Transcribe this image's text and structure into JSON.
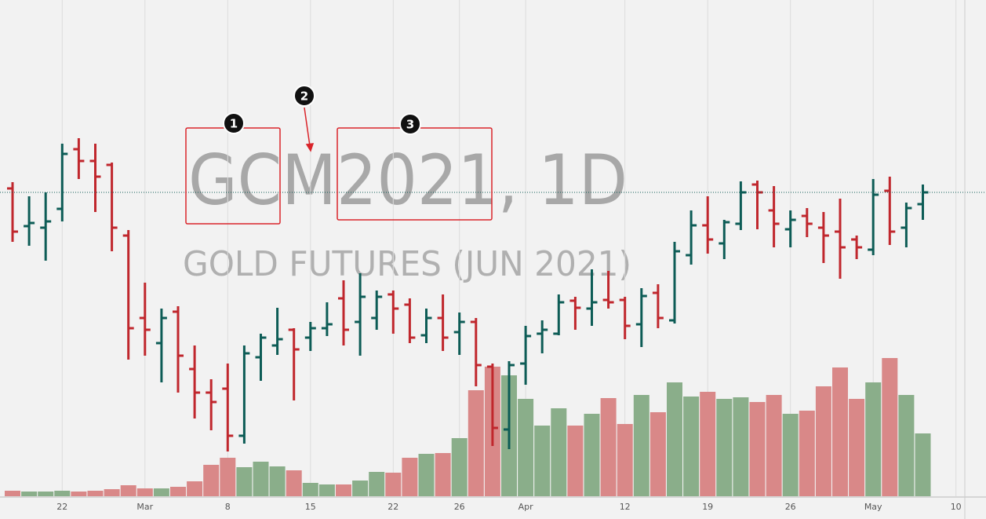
{
  "chart_data": {
    "type": "ohlc",
    "title": "GCM2021, 1D",
    "subtitle": "GOLD FUTURES (JUN 2021)",
    "categories": [
      null,
      null,
      null,
      "22",
      null,
      null,
      null,
      null,
      "Mar",
      null,
      null,
      null,
      null,
      "8",
      null,
      null,
      null,
      null,
      "15",
      null,
      null,
      null,
      null,
      "22",
      null,
      null,
      null,
      "26",
      null,
      null,
      null,
      "Apr",
      null,
      null,
      null,
      null,
      null,
      "12",
      null,
      null,
      null,
      null,
      "19",
      null,
      null,
      null,
      null,
      "26",
      null,
      null,
      null,
      null,
      "May",
      null,
      null,
      null,
      null,
      "10"
    ],
    "open": [
      421,
      373,
      371,
      395,
      471,
      456,
      451,
      361,
      256,
      224,
      264,
      191,
      161,
      166,
      106,
      206,
      221,
      241,
      231,
      243,
      281,
      251,
      256,
      286,
      273,
      234,
      256,
      238,
      251,
      194,
      114,
      198,
      236,
      236,
      278,
      268,
      279,
      279,
      248,
      288,
      253,
      336,
      374,
      351,
      376,
      426,
      393,
      369,
      386,
      371,
      366,
      356,
      343,
      418,
      371,
      401,
      null,
      null
    ],
    "high": [
      429,
      411,
      416,
      478,
      485,
      478,
      454,
      368,
      301,
      268,
      271,
      221,
      178,
      198,
      221,
      236,
      269,
      243,
      251,
      276,
      304,
      313,
      291,
      291,
      281,
      268,
      286,
      263,
      256,
      198,
      201,
      246,
      253,
      286,
      283,
      318,
      316,
      283,
      294,
      299,
      353,
      393,
      411,
      381,
      430,
      431,
      424,
      393,
      396,
      391,
      408,
      361,
      433,
      436,
      403,
      426,
      null,
      null
    ],
    "low": [
      353,
      348,
      329,
      379,
      433,
      391,
      341,
      203,
      208,
      174,
      161,
      128,
      113,
      86,
      96,
      176,
      209,
      151,
      214,
      233,
      221,
      208,
      241,
      236,
      224,
      224,
      214,
      209,
      169,
      93,
      89,
      171,
      211,
      234,
      241,
      246,
      268,
      229,
      219,
      243,
      249,
      324,
      338,
      331,
      368,
      369,
      346,
      346,
      359,
      326,
      306,
      331,
      336,
      349,
      346,
      381,
      null,
      null
    ],
    "close": [
      366,
      377,
      379,
      465,
      456,
      436,
      371,
      243,
      241,
      256,
      208,
      161,
      149,
      106,
      211,
      231,
      229,
      216,
      243,
      248,
      241,
      283,
      283,
      268,
      231,
      256,
      231,
      251,
      196,
      116,
      196,
      233,
      241,
      276,
      269,
      276,
      276,
      246,
      284,
      256,
      341,
      374,
      356,
      378,
      416,
      416,
      376,
      381,
      376,
      361,
      346,
      346,
      413,
      366,
      396,
      416,
      null,
      null
    ],
    "volume": [
      7,
      6,
      6,
      7,
      6,
      7,
      9,
      14,
      10,
      10,
      12,
      19,
      40,
      49,
      37,
      44,
      38,
      33,
      17,
      15,
      15,
      20,
      31,
      30,
      49,
      54,
      55,
      74,
      135,
      165,
      154,
      124,
      90,
      112,
      90,
      105,
      125,
      92,
      129,
      107,
      145,
      127,
      133,
      124,
      126,
      120,
      129,
      105,
      109,
      140,
      164,
      124,
      145,
      176,
      129,
      80,
      null,
      null
    ],
    "ylim": [
      29,
      661
    ],
    "volume_ylim": [
      0,
      632
    ],
    "up_color": "#0d5c56",
    "down_color": "#c0272d",
    "volume_up_color": "#8aae8a",
    "volume_down_color": "#d98888",
    "annotations": [
      "1",
      "2",
      "3"
    ]
  }
}
